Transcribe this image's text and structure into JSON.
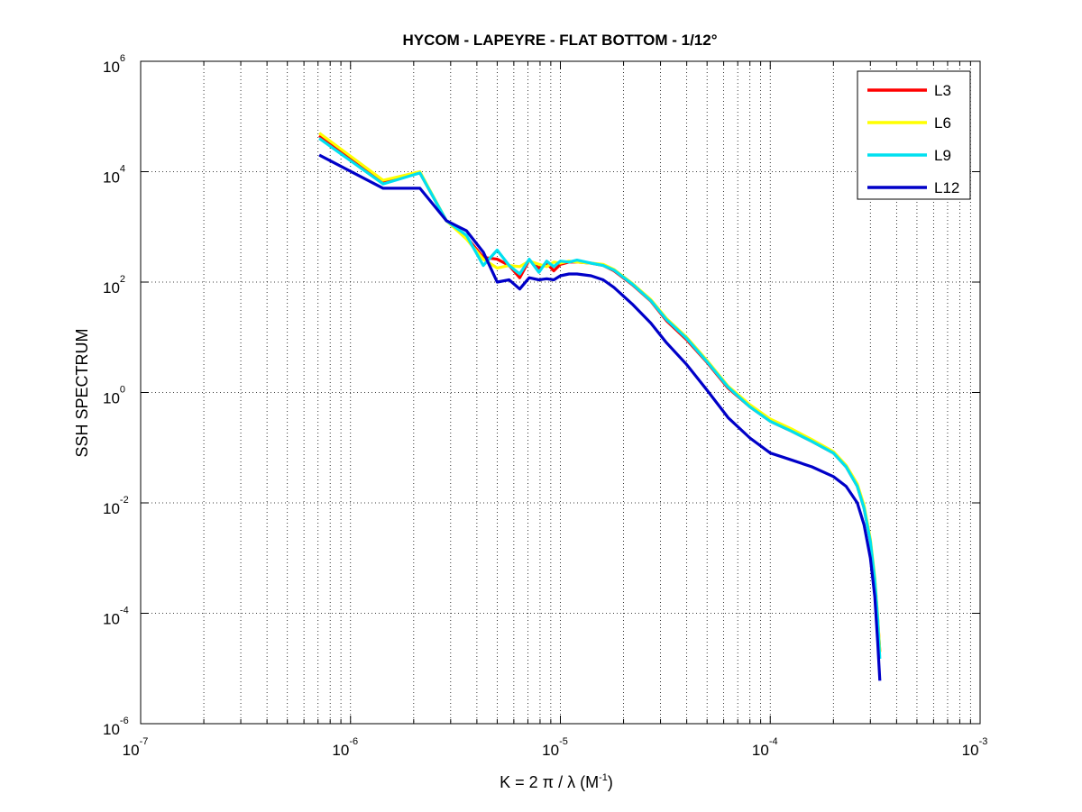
{
  "chart_data": {
    "type": "line",
    "title": "HYCOM - LAPEYRE - FLAT BOTTOM - 1/12°",
    "xlabel": {
      "pre": "K = 2 π / λ  (M",
      "sup": "-1",
      "post": ")"
    },
    "ylabel": "SSH SPECTRUM",
    "xscale": "log",
    "yscale": "log",
    "xlim": [
      1e-07,
      0.001
    ],
    "ylim": [
      1e-06,
      1000000.0
    ],
    "grid": true,
    "legend_position": "top-right",
    "x_ticks": [
      {
        "base": "10",
        "exp": "-7",
        "value": 1e-07
      },
      {
        "base": "10",
        "exp": "-6",
        "value": 1e-06
      },
      {
        "base": "10",
        "exp": "-5",
        "value": 1e-05
      },
      {
        "base": "10",
        "exp": "-4",
        "value": 0.0001
      },
      {
        "base": "10",
        "exp": "-3",
        "value": 0.001
      }
    ],
    "y_ticks": [
      {
        "base": "10",
        "exp": "6",
        "value": 1000000.0
      },
      {
        "base": "10",
        "exp": "4",
        "value": 10000.0
      },
      {
        "base": "10",
        "exp": "2",
        "value": 100.0
      },
      {
        "base": "10",
        "exp": "0",
        "value": 1
      },
      {
        "base": "10",
        "exp": "-2",
        "value": 0.01
      },
      {
        "base": "10",
        "exp": "-4",
        "value": 0.0001
      },
      {
        "base": "10",
        "exp": "-6",
        "value": 1e-06
      }
    ],
    "series": [
      {
        "name": "L3",
        "color": "#ff0000",
        "x": [
          7.1e-07,
          1.43e-06,
          2.14e-06,
          2.86e-06,
          3.57e-06,
          4.29e-06,
          5e-06,
          5.7e-06,
          6.4e-06,
          7.1e-06,
          7.9e-06,
          8.6e-06,
          9.3e-06,
          1e-05,
          1.1e-05,
          1.2e-05,
          1.4e-05,
          1.6e-05,
          1.8e-05,
          2.2e-05,
          2.7e-05,
          3.2e-05,
          4e-05,
          5e-05,
          6.3e-05,
          8e-05,
          0.0001,
          0.000126,
          0.000158,
          0.0002,
          0.00023,
          0.00026,
          0.00028,
          0.0003,
          0.000315,
          0.000325,
          0.000333
        ],
        "y": [
          45000,
          6500,
          9500,
          1300,
          650,
          280,
          260,
          200,
          120,
          250,
          180,
          220,
          160,
          210,
          230,
          230,
          220,
          200,
          160,
          90,
          45,
          20,
          9,
          3.5,
          1.2,
          0.55,
          0.3,
          0.2,
          0.13,
          0.08,
          0.045,
          0.02,
          0.008,
          0.002,
          0.0004,
          8e-05,
          2e-05
        ]
      },
      {
        "name": "L6",
        "color": "#ffff00",
        "x": [
          7.1e-07,
          1.43e-06,
          2.14e-06,
          2.86e-06,
          3.57e-06,
          4.29e-06,
          5e-06,
          5.7e-06,
          6.4e-06,
          7.1e-06,
          7.9e-06,
          8.6e-06,
          9.3e-06,
          1e-05,
          1.1e-05,
          1.2e-05,
          1.4e-05,
          1.6e-05,
          1.8e-05,
          2.2e-05,
          2.7e-05,
          3.2e-05,
          4e-05,
          5e-05,
          6.3e-05,
          8e-05,
          0.0001,
          0.000126,
          0.000158,
          0.0002,
          0.00023,
          0.00026,
          0.00028,
          0.0003,
          0.000315,
          0.000325,
          0.000333
        ],
        "y": [
          50000,
          7000,
          10000,
          1300,
          600,
          260,
          180,
          200,
          190,
          240,
          210,
          190,
          230,
          220,
          240,
          230,
          220,
          210,
          170,
          95,
          48,
          22,
          10,
          3.8,
          1.3,
          0.6,
          0.33,
          0.22,
          0.14,
          0.085,
          0.048,
          0.022,
          0.009,
          0.0022,
          0.00045,
          9e-05,
          2e-05
        ]
      },
      {
        "name": "L9",
        "color": "#00e0f0",
        "x": [
          7.1e-07,
          1.43e-06,
          2.14e-06,
          2.86e-06,
          3.57e-06,
          4.29e-06,
          5e-06,
          5.7e-06,
          6.4e-06,
          7.1e-06,
          7.9e-06,
          8.6e-06,
          9.3e-06,
          1e-05,
          1.1e-05,
          1.2e-05,
          1.4e-05,
          1.6e-05,
          1.8e-05,
          2.2e-05,
          2.7e-05,
          3.2e-05,
          4e-05,
          5e-05,
          6.3e-05,
          8e-05,
          0.0001,
          0.000126,
          0.000158,
          0.0002,
          0.00023,
          0.00026,
          0.00028,
          0.0003,
          0.000315,
          0.000325,
          0.000333
        ],
        "y": [
          40000,
          6000,
          9500,
          1300,
          700,
          200,
          380,
          200,
          140,
          260,
          150,
          240,
          190,
          240,
          230,
          250,
          220,
          200,
          165,
          92,
          46,
          21,
          9.5,
          3.6,
          1.25,
          0.55,
          0.3,
          0.2,
          0.13,
          0.08,
          0.045,
          0.02,
          0.008,
          0.002,
          0.0004,
          8e-05,
          1.5e-05
        ]
      },
      {
        "name": "L12",
        "color": "#0000c8",
        "x": [
          7.1e-07,
          1.43e-06,
          2.14e-06,
          2.86e-06,
          3.57e-06,
          4.29e-06,
          5e-06,
          5.7e-06,
          6.4e-06,
          7.1e-06,
          7.9e-06,
          8.6e-06,
          9.3e-06,
          1e-05,
          1.1e-05,
          1.2e-05,
          1.4e-05,
          1.6e-05,
          1.8e-05,
          2.2e-05,
          2.7e-05,
          3.2e-05,
          4e-05,
          5e-05,
          6.3e-05,
          8e-05,
          0.0001,
          0.000126,
          0.000158,
          0.0002,
          0.00023,
          0.00026,
          0.00028,
          0.0003,
          0.000315,
          0.000325,
          0.000333
        ],
        "y": [
          20000,
          5000,
          5000,
          1300,
          850,
          350,
          100,
          110,
          75,
          120,
          110,
          115,
          110,
          130,
          140,
          140,
          130,
          110,
          80,
          40,
          18,
          8,
          3.2,
          1.1,
          0.35,
          0.15,
          0.08,
          0.06,
          0.045,
          0.03,
          0.02,
          0.01,
          0.004,
          0.001,
          0.0002,
          3e-05,
          6e-06
        ]
      }
    ]
  }
}
